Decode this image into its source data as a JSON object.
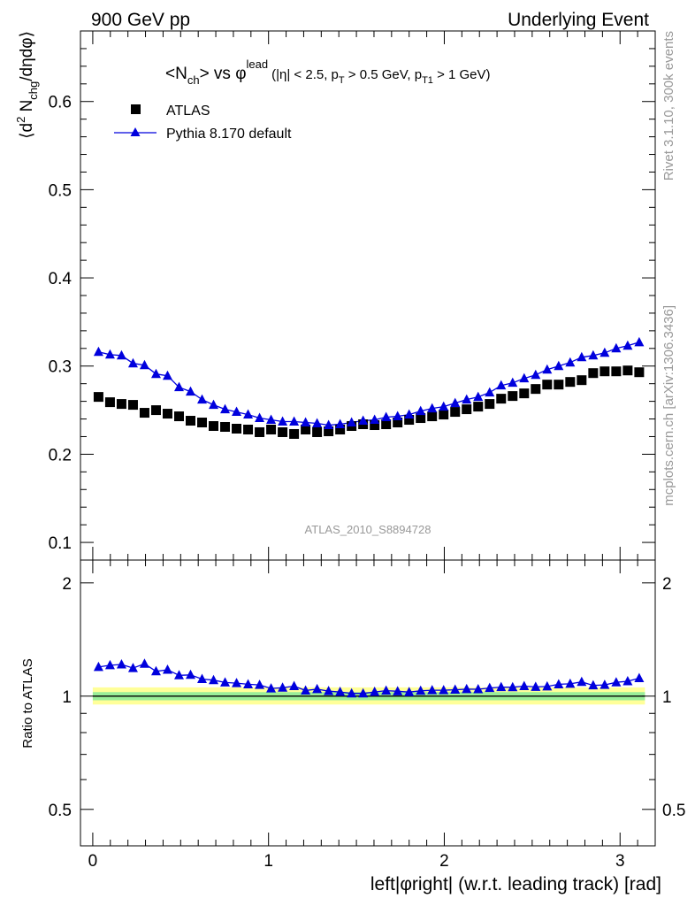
{
  "header": {
    "left": "900 GeV pp",
    "right": "Underlying Event"
  },
  "side_labels": {
    "rivet": "Rivet 3.1.10,  300k events",
    "mcplots": "mcplots.cern.ch [arXiv:1306.3436]"
  },
  "chart_data": [
    {
      "type": "scatter",
      "title": "<N_ch> vs φ^lead (|η| < 2.5, p_T > 0.5 GeV, p_T1 > 1 GeV)",
      "title_parts": {
        "n": "<N",
        "n_sub": "ch",
        "n_close": "> vs ",
        "phi": "φ",
        "phi_sup": "lead",
        "cut1": "(|η| < 2.5, p",
        "cut1_sub": "T",
        "cut2": " > 0.5 GeV, p",
        "cut2_sub": "T1",
        "cut3": " > 1 GeV)"
      },
      "ylabel": "⟨d² N_chg/dηdφ⟩",
      "ylabel_parts": {
        "open": "⟨d",
        "sup": "2",
        "n": " N",
        "sub": "chg",
        "rest": "/dηdφ⟩"
      },
      "watermark": "ATLAS_2010_S8894728",
      "xlim": [
        -0.07,
        3.2
      ],
      "ylim": [
        0.08,
        0.68
      ],
      "yticks": [
        0.1,
        0.2,
        0.3,
        0.4,
        0.5,
        0.6
      ],
      "ytick_labels": [
        "0.1",
        "0.2",
        "0.3",
        "0.4",
        "0.5",
        "0.6"
      ],
      "legend_position": "top-left",
      "x": [
        0.0327,
        0.0982,
        0.1636,
        0.2291,
        0.2945,
        0.36,
        0.4254,
        0.4909,
        0.5563,
        0.6218,
        0.6872,
        0.7527,
        0.8181,
        0.8836,
        0.949,
        1.0145,
        1.0799,
        1.1454,
        1.2108,
        1.2763,
        1.3417,
        1.4072,
        1.4726,
        1.5381,
        1.6035,
        1.669,
        1.7344,
        1.7999,
        1.8653,
        1.9308,
        1.9962,
        2.0617,
        2.1271,
        2.1926,
        2.258,
        2.3235,
        2.3889,
        2.4544,
        2.5198,
        2.5853,
        2.6507,
        2.7162,
        2.7816,
        2.8471,
        2.9125,
        2.978,
        3.0434,
        3.1089
      ],
      "series": [
        {
          "name": "ATLAS",
          "marker": "square",
          "color": "#000000",
          "values": [
            0.265,
            0.259,
            0.257,
            0.256,
            0.247,
            0.25,
            0.246,
            0.243,
            0.238,
            0.236,
            0.232,
            0.231,
            0.229,
            0.228,
            0.225,
            0.228,
            0.225,
            0.223,
            0.228,
            0.225,
            0.226,
            0.228,
            0.232,
            0.234,
            0.233,
            0.234,
            0.236,
            0.239,
            0.241,
            0.243,
            0.245,
            0.248,
            0.251,
            0.254,
            0.257,
            0.263,
            0.266,
            0.269,
            0.274,
            0.279,
            0.279,
            0.282,
            0.284,
            0.292,
            0.294,
            0.294,
            0.295,
            0.293
          ]
        },
        {
          "name": "Pythia 8.170 default",
          "marker": "triangle",
          "color": "#0000dd",
          "values": [
            0.316,
            0.313,
            0.312,
            0.303,
            0.301,
            0.291,
            0.289,
            0.276,
            0.271,
            0.262,
            0.256,
            0.251,
            0.248,
            0.245,
            0.241,
            0.239,
            0.237,
            0.237,
            0.236,
            0.235,
            0.233,
            0.234,
            0.236,
            0.238,
            0.239,
            0.242,
            0.243,
            0.245,
            0.249,
            0.252,
            0.254,
            0.258,
            0.262,
            0.265,
            0.27,
            0.278,
            0.281,
            0.286,
            0.29,
            0.296,
            0.3,
            0.304,
            0.31,
            0.312,
            0.315,
            0.32,
            0.323,
            0.327
          ]
        }
      ]
    },
    {
      "type": "scatter",
      "ylabel": "Ratio to ATLAS",
      "xlabel": "left|φright| (w.r.t. leading track) [rad]",
      "xlim": [
        -0.07,
        3.2
      ],
      "xticks": [
        0,
        1,
        2,
        3
      ],
      "xtick_labels": [
        "0",
        "1",
        "2",
        "3"
      ],
      "ylim": [
        0.4,
        2.3
      ],
      "yticks": [
        0.5,
        1,
        2
      ],
      "ytick_labels": [
        "0.5",
        "1",
        "2"
      ],
      "bands": [
        {
          "name": "total uncertainty",
          "lo": 0.95,
          "hi": 1.055,
          "color": "#ffff99"
        },
        {
          "name": "statistical uncertainty",
          "lo": 0.975,
          "hi": 1.025,
          "color": "#99ee99"
        }
      ],
      "reference_line": 1.0,
      "series": [
        {
          "name": "Pythia 8.170 default",
          "color": "#0000dd",
          "values": [
            1.195,
            1.208,
            1.214,
            1.187,
            1.219,
            1.164,
            1.175,
            1.136,
            1.139,
            1.11,
            1.103,
            1.087,
            1.083,
            1.075,
            1.071,
            1.048,
            1.053,
            1.063,
            1.035,
            1.044,
            1.031,
            1.026,
            1.017,
            1.017,
            1.026,
            1.034,
            1.03,
            1.025,
            1.033,
            1.037,
            1.037,
            1.04,
            1.044,
            1.043,
            1.051,
            1.057,
            1.056,
            1.063,
            1.058,
            1.061,
            1.075,
            1.078,
            1.091,
            1.068,
            1.071,
            1.088,
            1.095,
            1.116
          ]
        }
      ]
    }
  ]
}
